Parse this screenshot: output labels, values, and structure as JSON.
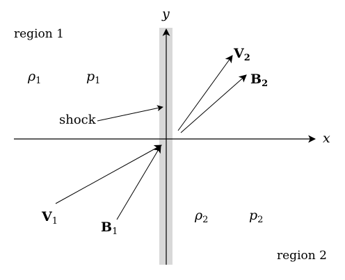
{
  "labels": {
    "region_1": "region 1",
    "region_2": "region 2",
    "shock": "shock",
    "x_axis": "x",
    "y_axis": "y",
    "rho": "ρ",
    "p": "p",
    "V": "V",
    "B": "B",
    "sub_1": "1",
    "sub_2": "2"
  },
  "colors": {
    "shock_band": "#d8d8d8",
    "ink": "#000000"
  }
}
